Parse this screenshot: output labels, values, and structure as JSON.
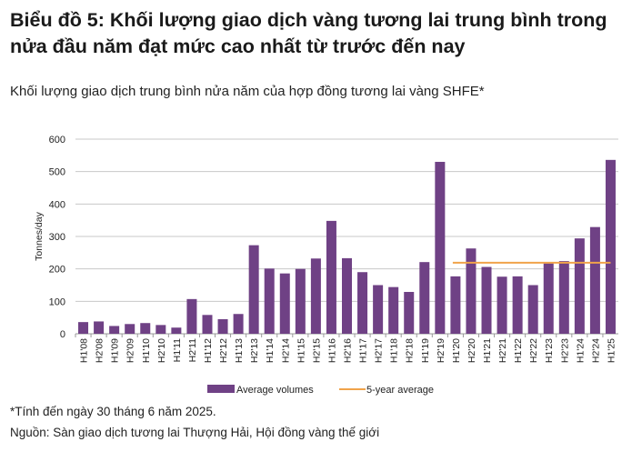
{
  "header": {
    "title": "Biểu đồ 5: Khối lượng giao dịch vàng tương lai trung bình trong nửa đầu năm đạt mức cao nhất từ trước đến nay",
    "subtitle": "Khối lượng giao dịch trung bình nửa năm của hợp đồng tương lai vàng SHFE*"
  },
  "footer": {
    "note": "*Tính đến ngày 30 tháng 6 năm 2025.",
    "source": "Nguồn: Sàn giao dịch tương lai Thượng Hải, Hội đồng vàng thế giới"
  },
  "chart_data": {
    "type": "bar",
    "ylabel": "Tonnes/day",
    "ylim": [
      0,
      600
    ],
    "yticks": [
      0,
      100,
      200,
      300,
      400,
      500,
      600
    ],
    "grid": true,
    "legend_position": "bottom",
    "categories": [
      "H1'08",
      "H2'08",
      "H1'09",
      "H2'09",
      "H1'10",
      "H2'10",
      "H1'11",
      "H2'11",
      "H1'12",
      "H2'12",
      "H1'13",
      "H2'13",
      "H1'14",
      "H2'14",
      "H1'15",
      "H2'15",
      "H1'16",
      "H2'16",
      "H1'17",
      "H2'17",
      "H1'18",
      "H2'18",
      "H1'19",
      "H2'19",
      "H1'20",
      "H2'20",
      "H1'21",
      "H2'21",
      "H1'22",
      "H2'22",
      "H1'23",
      "H2'23",
      "H1'24",
      "H2'24",
      "H1'25"
    ],
    "series": [
      {
        "name": "Average volumes",
        "type": "bar",
        "color": "#6f4185",
        "values": [
          36,
          38,
          24,
          30,
          33,
          27,
          19,
          107,
          58,
          45,
          61,
          273,
          201,
          186,
          200,
          232,
          348,
          233,
          190,
          150,
          144,
          129,
          221,
          530,
          177,
          263,
          206,
          176,
          177,
          150,
          217,
          224,
          294,
          329,
          536
        ]
      },
      {
        "name": "5-year average",
        "type": "line",
        "color": "#f0a34a",
        "value": 219,
        "from": "H1'20",
        "to": "H1'25"
      }
    ]
  }
}
